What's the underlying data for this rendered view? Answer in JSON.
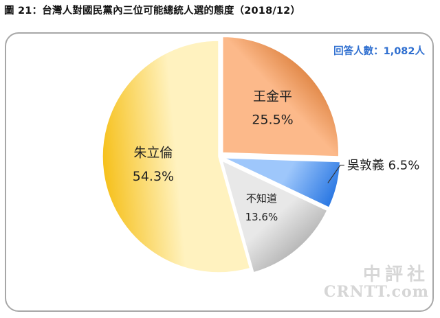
{
  "figure": {
    "title": "圖 21：台灣人對國民黨內三位可能總統人選的態度（2018/12）",
    "sample_note": "回答人數：1,082人",
    "watermark_line1": "中評社",
    "watermark_line2": "CRNTT.com"
  },
  "chart_data": {
    "type": "pie",
    "title": "圖 21：台灣人對國民黨內三位可能總統人選的態度（2018/12）",
    "unit": "%",
    "slices": [
      {
        "label": "朱立倫",
        "value": 54.3,
        "display": "54.3%",
        "color": "#f6c01a",
        "highlight": "#fff2bf",
        "text_color": "#222222",
        "exploded": false
      },
      {
        "label": "王金平",
        "value": 25.5,
        "display": "25.5%",
        "color": "#d06a1f",
        "highlight": "#fcb98a",
        "text_color": "#222222",
        "exploded": true
      },
      {
        "label": "吳敦義",
        "value": 6.5,
        "display": "6.5%",
        "color": "#2b78e3",
        "highlight": "#9ec7fb",
        "text_color": "#222222",
        "exploded": true
      },
      {
        "label": "不知道",
        "value": 13.6,
        "display": "13.6%",
        "color": "#a6a6a6",
        "highlight": "#e8e8e8",
        "text_color": "#222222",
        "exploded": true
      }
    ]
  }
}
